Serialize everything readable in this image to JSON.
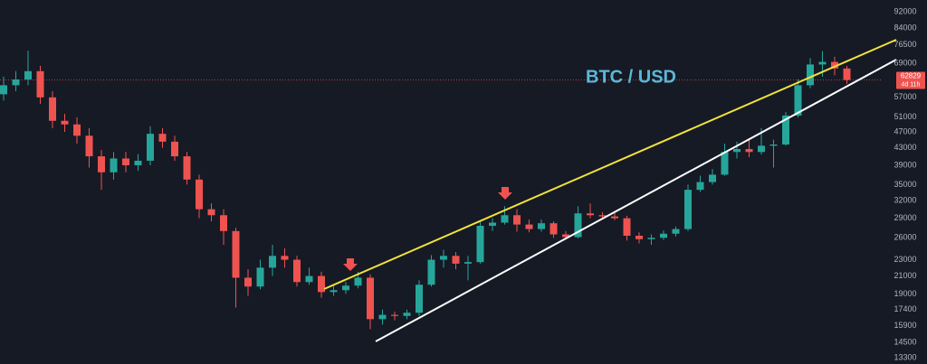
{
  "chart_data": {
    "type": "candlestick",
    "title": "BTC / USD",
    "up_color": "#26a69a",
    "down_color": "#ef5350",
    "log_scale": true,
    "grid": false,
    "ylim": [
      12840,
      98240
    ],
    "yticks": [
      92000,
      84000,
      76500,
      69000,
      57000,
      51000,
      47000,
      43000,
      39000,
      35000,
      32000,
      29000,
      26000,
      23000,
      21000,
      19000,
      17400,
      15900,
      14500,
      13300
    ],
    "countdown": "4d 11h",
    "open": [
      58000,
      61000,
      63000,
      66000,
      57000,
      50000,
      49000,
      46000,
      41000,
      37500,
      40500,
      39000,
      40000,
      46500,
      44500,
      41000,
      36000,
      30500,
      29500,
      27000,
      20800,
      19800,
      22000,
      23500,
      23000,
      20300,
      21000,
      19200,
      19400,
      19900,
      20800,
      16500,
      16900,
      16800,
      17100,
      20000,
      23000,
      23500,
      22500,
      22700,
      27800,
      28300,
      29500,
      28000,
      27300,
      28200,
      26500,
      26100,
      29800,
      29500,
      29300,
      29000,
      26300,
      25800,
      26000,
      26600,
      27300,
      34000,
      35500,
      37000,
      42000,
      42700,
      42000,
      43500,
      43800,
      51500,
      61000,
      68500,
      69500,
      67000
    ],
    "high": [
      64000,
      66000,
      74000,
      68000,
      59000,
      52000,
      51000,
      48000,
      42500,
      42000,
      42000,
      41500,
      48500,
      48000,
      46000,
      42000,
      37000,
      31500,
      30500,
      27500,
      21800,
      23000,
      25000,
      24500,
      23500,
      22000,
      21500,
      20000,
      20300,
      21500,
      21200,
      17400,
      17200,
      17400,
      20500,
      23600,
      24300,
      24000,
      23500,
      28500,
      29000,
      31000,
      30500,
      28800,
      28800,
      28500,
      27000,
      31000,
      31500,
      30000,
      30000,
      29400,
      26800,
      26500,
      27100,
      27700,
      35000,
      36800,
      38200,
      44000,
      44500,
      45000,
      48000,
      45000,
      52500,
      63000,
      71000,
      73800,
      71500,
      68000
    ],
    "low": [
      56000,
      59000,
      61000,
      55000,
      48000,
      47000,
      44000,
      38500,
      34000,
      36000,
      37500,
      37800,
      39000,
      43000,
      40000,
      35000,
      29000,
      28500,
      25000,
      17600,
      18800,
      19500,
      21000,
      22000,
      19800,
      20000,
      18600,
      18800,
      19000,
      19600,
      15600,
      16000,
      16400,
      16500,
      16800,
      19800,
      22000,
      21800,
      20500,
      22500,
      27000,
      28000,
      26900,
      26800,
      26900,
      26000,
      25800,
      25900,
      29000,
      28800,
      28700,
      25600,
      25200,
      25000,
      25700,
      26200,
      27000,
      33600,
      35000,
      36800,
      40500,
      40800,
      41400,
      38500,
      43500,
      51000,
      60000,
      64000,
      64500,
      61500
    ],
    "close": [
      61000,
      63000,
      66000,
      57000,
      50000,
      49000,
      46000,
      41000,
      37500,
      40500,
      39000,
      40000,
      46500,
      44500,
      41000,
      36000,
      30500,
      29500,
      27000,
      20800,
      19800,
      22000,
      23500,
      23000,
      20300,
      21000,
      19200,
      19400,
      19900,
      20800,
      16500,
      16900,
      16800,
      17100,
      20000,
      23000,
      23500,
      22500,
      22700,
      27800,
      28300,
      29500,
      28000,
      27300,
      28200,
      26500,
      26100,
      29800,
      29500,
      29300,
      29000,
      26300,
      25800,
      26000,
      26600,
      27300,
      34000,
      35500,
      37000,
      42000,
      42700,
      42000,
      43500,
      43800,
      51500,
      61000,
      68500,
      69500,
      67000,
      62829
    ]
  }
}
